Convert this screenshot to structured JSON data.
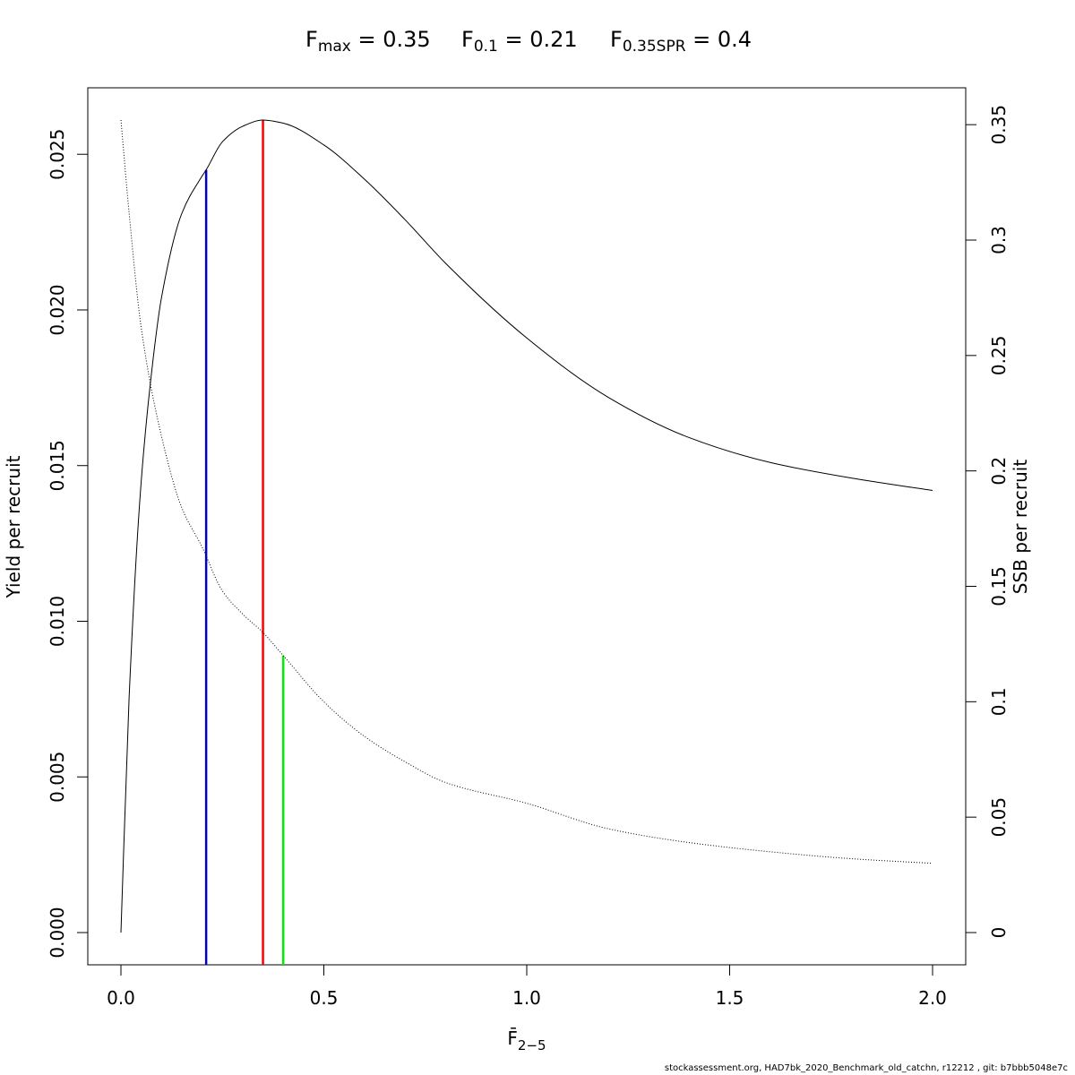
{
  "title": {
    "fmax": {
      "sym": "F",
      "sub": "max",
      "rest": " = 0.35"
    },
    "f01": {
      "sym": "F",
      "sub": "0.1",
      "rest": " = 0.21"
    },
    "fspr": {
      "sym": "F",
      "sub": "0.35SPR",
      "rest": " = 0.4"
    }
  },
  "footer": "stockassessment.org, HAD7bk_2020_Benchmark_old_catchn, r12212 , git: b7bbb5048e7c",
  "chart_data": {
    "type": "line",
    "xlabel": "F̄",
    "xlabel_sub": "2−5",
    "ylabel": "Yield per recruit",
    "y2label": "SSB per recruit",
    "xlim": [
      0,
      2.0
    ],
    "ylim": [
      0,
      0.0261
    ],
    "y2lim": [
      0,
      0.352
    ],
    "xticks": [
      "0.0",
      "0.5",
      "1.0",
      "1.5",
      "2.0"
    ],
    "yticks": [
      "0.000",
      "0.005",
      "0.010",
      "0.015",
      "0.020",
      "0.025"
    ],
    "y2ticks": [
      "0",
      "0.05",
      "0.1",
      "0.15",
      "0.2",
      "0.25",
      "0.3",
      "0.35"
    ],
    "series": [
      {
        "axis": "left",
        "style": "solid",
        "color": "#000000",
        "x": [
          0,
          0.02,
          0.05,
          0.08,
          0.1,
          0.15,
          0.2,
          0.21,
          0.25,
          0.3,
          0.35,
          0.4,
          0.5,
          0.6,
          0.7,
          0.8,
          1.0,
          1.2,
          1.4,
          1.6,
          1.8,
          2.0
        ],
        "y": [
          0,
          0.0075,
          0.0145,
          0.0185,
          0.0204,
          0.0231,
          0.0243,
          0.0245,
          0.0254,
          0.0259,
          0.0261,
          0.026,
          0.0253,
          0.0242,
          0.0229,
          0.0215,
          0.0191,
          0.0172,
          0.0159,
          0.0151,
          0.0146,
          0.0142
        ]
      },
      {
        "axis": "right",
        "style": "dotted",
        "color": "#000000",
        "x": [
          0,
          0.02,
          0.05,
          0.1,
          0.15,
          0.2,
          0.25,
          0.3,
          0.35,
          0.4,
          0.5,
          0.6,
          0.7,
          0.8,
          1.0,
          1.2,
          1.4,
          1.6,
          1.8,
          2.0
        ],
        "y": [
          0.352,
          0.312,
          0.262,
          0.215,
          0.184,
          0.167,
          0.148,
          0.138,
          0.13,
          0.12,
          0.1,
          0.085,
          0.074,
          0.065,
          0.056,
          0.045,
          0.039,
          0.035,
          0.032,
          0.03
        ]
      }
    ],
    "reference_lines": [
      {
        "name": "F0.1",
        "x": 0.21,
        "y_top": 0.0245,
        "color": "#0000cd"
      },
      {
        "name": "Fmax",
        "x": 0.35,
        "y_top": 0.0261,
        "color": "#ff0000"
      },
      {
        "name": "F0.35SPR",
        "x": 0.4,
        "y_top": 0.0089,
        "color": "#00ee00"
      }
    ]
  }
}
